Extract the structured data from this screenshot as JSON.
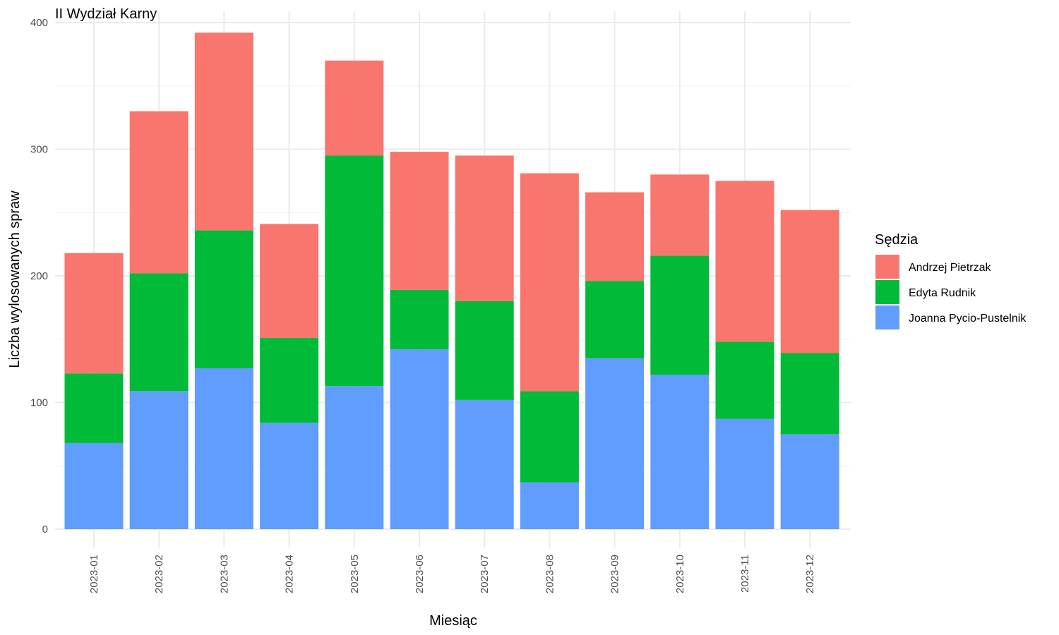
{
  "chart_data": {
    "type": "bar",
    "stacked": true,
    "title": "II Wydział Karny",
    "xlabel": "Miesiąc",
    "ylabel": "Liczba wylosowanych spraw",
    "ylim": [
      0,
      400
    ],
    "yticks": [
      0,
      100,
      200,
      300,
      400
    ],
    "grid": true,
    "legend_position": "right",
    "legend_title": "Sędzia",
    "categories": [
      "2023-01",
      "2023-02",
      "2023-03",
      "2023-04",
      "2023-05",
      "2023-06",
      "2023-07",
      "2023-08",
      "2023-09",
      "2023-10",
      "2023-11",
      "2023-12"
    ],
    "series": [
      {
        "name": "Joanna Pycio-Pustelnik",
        "color": "#619CFF",
        "values": [
          68,
          109,
          127,
          84,
          113,
          142,
          102,
          37,
          135,
          122,
          87,
          75
        ]
      },
      {
        "name": "Edyta Rudnik",
        "color": "#00BA38",
        "values": [
          55,
          93,
          109,
          67,
          182,
          47,
          78,
          72,
          61,
          94,
          61,
          64
        ]
      },
      {
        "name": "Andrzej Pietrzak",
        "color": "#F8766D",
        "values": [
          95,
          128,
          156,
          90,
          75,
          109,
          115,
          172,
          70,
          64,
          127,
          113
        ]
      }
    ],
    "legend_order": [
      "Andrzej Pietrzak",
      "Edyta Rudnik",
      "Joanna Pycio-Pustelnik"
    ]
  }
}
